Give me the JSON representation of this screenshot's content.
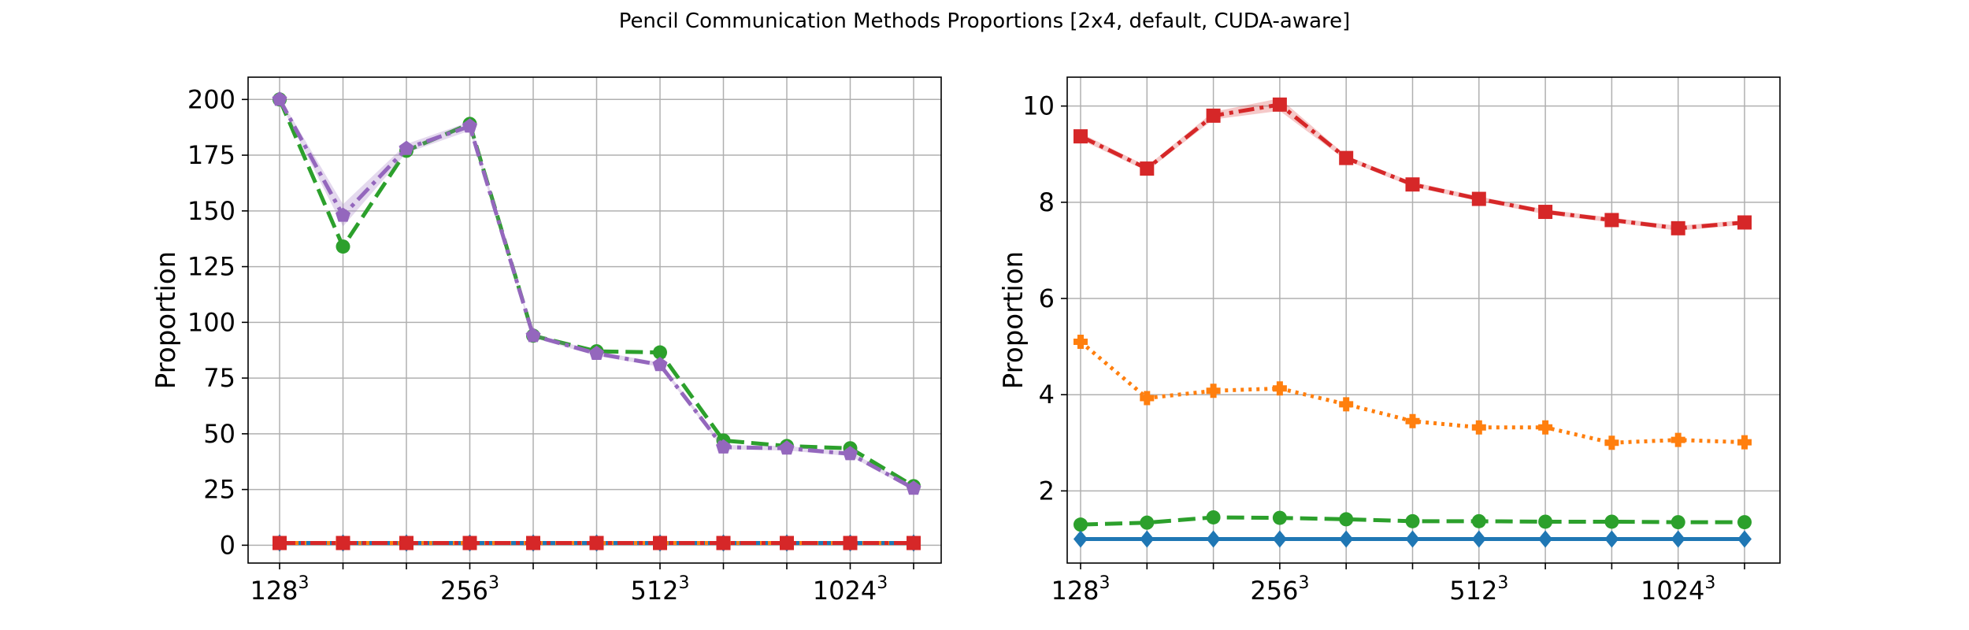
{
  "title": "Pencil Communication Methods Proportions [2x4, default, CUDA-aware]",
  "chart_data": [
    {
      "type": "line",
      "ylabel": "Proportion",
      "ylim": [
        -8,
        210
      ],
      "yticks": [
        0,
        25,
        50,
        75,
        100,
        125,
        150,
        175,
        200
      ],
      "xtick_labels": [
        {
          "base": "128",
          "sup": "3"
        },
        {
          "base": "256",
          "sup": "3"
        },
        {
          "base": "512",
          "sup": "3"
        },
        {
          "base": "1024",
          "sup": "3"
        }
      ],
      "grid": true,
      "series": [
        {
          "color": "#2ca02c",
          "style": "dashed",
          "marker": "circle",
          "values": [
            200,
            134,
            177,
            189,
            94,
            87,
            86.5,
            47,
            44.5,
            43.5,
            26.5
          ]
        },
        {
          "color": "#9467bd",
          "style": "dashdot",
          "marker": "pentagon",
          "values": [
            200,
            148,
            178,
            188,
            94,
            86,
            81,
            44,
            43.5,
            41,
            25.5
          ],
          "band": [
            [
              199,
              201
            ],
            [
              143,
              153
            ],
            [
              176,
              180
            ],
            [
              186,
              190
            ],
            [
              93,
              95
            ],
            [
              85,
              87
            ],
            [
              80,
              82
            ],
            [
              43,
              45
            ],
            [
              42.5,
              44.5
            ],
            [
              40,
              42
            ],
            [
              24.5,
              26.5
            ]
          ]
        },
        {
          "color": "#1f77b4",
          "style": "solid",
          "marker": "diamond",
          "values": [
            1,
            1,
            1,
            1,
            1,
            1,
            1,
            1,
            1,
            1,
            1
          ]
        },
        {
          "color": "#ff7f0e",
          "style": "dotted",
          "marker": "plus",
          "values": [
            1,
            1,
            1,
            1,
            1,
            1,
            1,
            1,
            1,
            1,
            1
          ]
        },
        {
          "color": "#d62728",
          "style": "dashdot",
          "marker": "square",
          "values": [
            1,
            1,
            1,
            1,
            1,
            1,
            1,
            1,
            1,
            1,
            1
          ]
        }
      ]
    },
    {
      "type": "line",
      "ylabel": "Proportion",
      "ylim": [
        0.5,
        10.6
      ],
      "yticks": [
        2,
        4,
        6,
        8,
        10
      ],
      "xtick_labels": [
        {
          "base": "128",
          "sup": "3"
        },
        {
          "base": "256",
          "sup": "3"
        },
        {
          "base": "512",
          "sup": "3"
        },
        {
          "base": "1024",
          "sup": "3"
        }
      ],
      "grid": true,
      "series": [
        {
          "color": "#d62728",
          "style": "dashdot",
          "marker": "square",
          "values": [
            9.37,
            8.7,
            9.8,
            10.03,
            8.92,
            8.37,
            8.07,
            7.8,
            7.63,
            7.46,
            7.58
          ],
          "band": [
            [
              9.3,
              9.44
            ],
            [
              8.65,
              8.75
            ],
            [
              9.72,
              9.88
            ],
            [
              9.9,
              10.16
            ],
            [
              8.87,
              8.97
            ],
            [
              8.32,
              8.42
            ],
            [
              8.02,
              8.12
            ],
            [
              7.75,
              7.85
            ],
            [
              7.58,
              7.68
            ],
            [
              7.41,
              7.51
            ],
            [
              7.53,
              7.63
            ]
          ]
        },
        {
          "color": "#ff7f0e",
          "style": "dotted",
          "marker": "plus",
          "values": [
            5.1,
            3.93,
            4.08,
            4.13,
            3.8,
            3.45,
            3.32,
            3.32,
            3.0,
            3.06,
            3.01
          ]
        },
        {
          "color": "#2ca02c",
          "style": "dashed",
          "marker": "circle",
          "values": [
            1.3,
            1.34,
            1.45,
            1.44,
            1.41,
            1.37,
            1.37,
            1.36,
            1.36,
            1.35,
            1.35
          ]
        },
        {
          "color": "#1f77b4",
          "style": "solid",
          "marker": "diamond",
          "values": [
            1,
            1,
            1,
            1,
            1,
            1,
            1,
            1,
            1,
            1,
            1
          ]
        }
      ]
    }
  ]
}
